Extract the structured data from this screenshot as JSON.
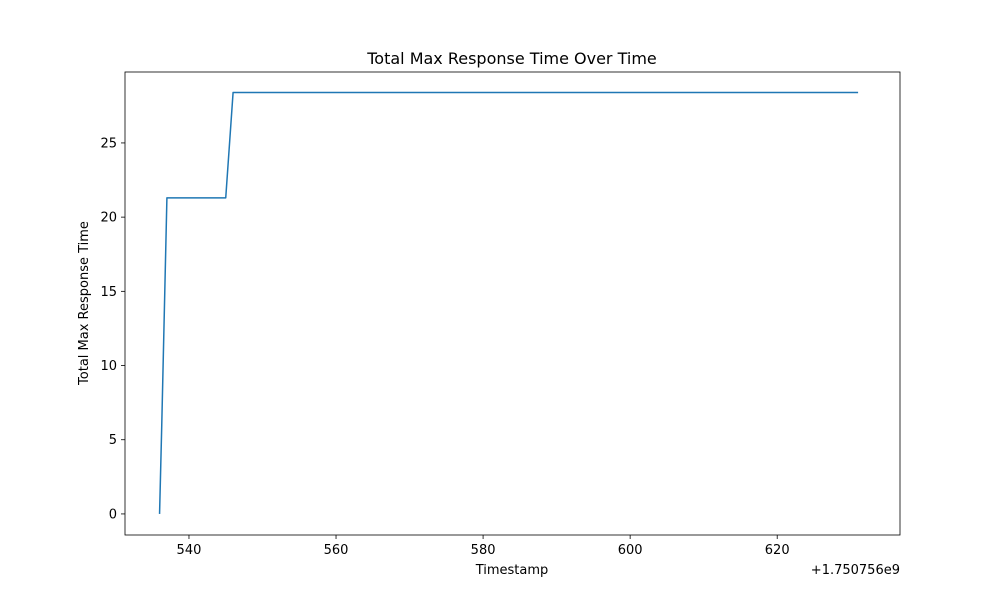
{
  "chart_data": {
    "type": "line",
    "title": "Total Max Response Time Over Time",
    "xlabel": "Timestamp",
    "ylabel": "Total Max Response Time",
    "x_offset_label": "+1.750756e9",
    "xlim": [
      531.3,
      636.7
    ],
    "ylim": [
      -1.42,
      29.78
    ],
    "x_ticks": [
      540,
      560,
      580,
      600,
      620
    ],
    "x_tick_labels": [
      "540",
      "560",
      "580",
      "600",
      "620"
    ],
    "y_ticks": [
      0,
      5,
      10,
      15,
      20,
      25
    ],
    "y_tick_labels": [
      "0",
      "5",
      "10",
      "15",
      "20",
      "25"
    ],
    "grid": false,
    "series": [
      {
        "color": "#1f77b4",
        "x": [
          536,
          536.3,
          537,
          545,
          546,
          631
        ],
        "y": [
          0,
          6,
          21.3,
          21.3,
          28.4,
          28.4
        ]
      }
    ]
  }
}
